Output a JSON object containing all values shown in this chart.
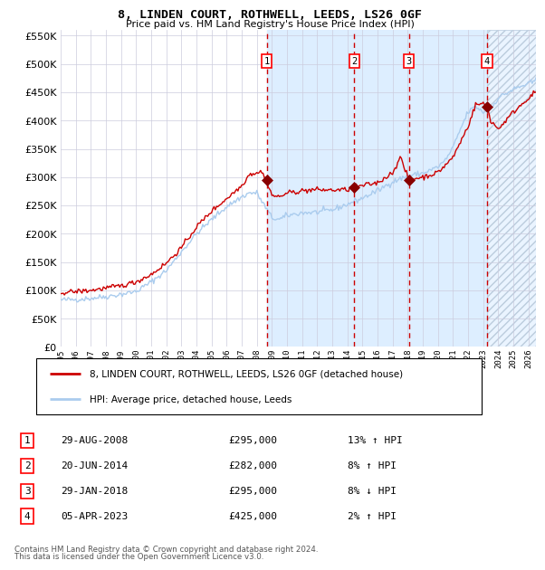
{
  "title": "8, LINDEN COURT, ROTHWELL, LEEDS, LS26 0GF",
  "subtitle": "Price paid vs. HM Land Registry's House Price Index (HPI)",
  "legend_label_red": "8, LINDEN COURT, ROTHWELL, LEEDS, LS26 0GF (detached house)",
  "legend_label_blue": "HPI: Average price, detached house, Leeds",
  "footer1": "Contains HM Land Registry data © Crown copyright and database right 2024.",
  "footer2": "This data is licensed under the Open Government Licence v3.0.",
  "transactions": [
    {
      "num": 1,
      "date": "29-AUG-2008",
      "price": 295000,
      "pct": "13%",
      "dir": "↑",
      "year": 2008.66
    },
    {
      "num": 2,
      "date": "20-JUN-2014",
      "price": 282000,
      "pct": "8%",
      "dir": "↑",
      "year": 2014.47
    },
    {
      "num": 3,
      "date": "29-JAN-2018",
      "price": 295000,
      "pct": "8%",
      "dir": "↓",
      "year": 2018.08
    },
    {
      "num": 4,
      "date": "05-APR-2023",
      "price": 425000,
      "pct": "2%",
      "dir": "↑",
      "year": 2023.26
    }
  ],
  "xmin": 1995.0,
  "xmax": 2026.5,
  "ymin": 0,
  "ymax": 560000,
  "yticks": [
    0,
    50000,
    100000,
    150000,
    200000,
    250000,
    300000,
    350000,
    400000,
    450000,
    500000,
    550000
  ],
  "hpi_color": "#aaccee",
  "price_color": "#cc0000",
  "marker_color": "#880000",
  "vline_color": "#cc0000",
  "shade_color": "#ddeeff",
  "background_color": "#ffffff",
  "grid_color": "#ccccdd"
}
